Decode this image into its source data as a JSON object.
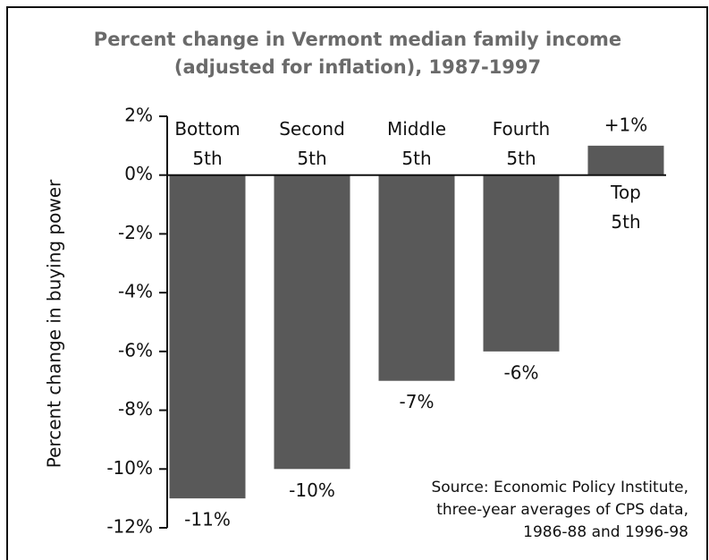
{
  "chart_data": {
    "type": "bar",
    "title": [
      "Percent change in Vermont median family income",
      "(adjusted for inflation), 1987-1997"
    ],
    "ylabel": "Percent change in buying power",
    "categories": [
      "Bottom 5th",
      "Second 5th",
      "Middle 5th",
      "Fourth 5th",
      "Top 5th"
    ],
    "values": [
      -11,
      -10,
      -7,
      -6,
      1
    ],
    "value_labels": [
      "-11%",
      "-10%",
      "-7%",
      "-6%",
      "+1%"
    ],
    "color": "#595959",
    "ylim": [
      -12,
      2
    ],
    "yticks": [
      {
        "value": 2,
        "label": "2%"
      },
      {
        "value": 0,
        "label": "0%"
      },
      {
        "value": -2,
        "label": "-2%"
      },
      {
        "value": -4,
        "label": "-4%"
      },
      {
        "value": -6,
        "label": "-6%"
      },
      {
        "value": -8,
        "label": "-8%"
      },
      {
        "value": -10,
        "label": "-10%"
      },
      {
        "value": -12,
        "label": "-12%"
      }
    ],
    "source": [
      "Source: Economic Policy Institute,",
      "three-year averages of CPS data,",
      "1986-88 and 1996-98"
    ]
  }
}
